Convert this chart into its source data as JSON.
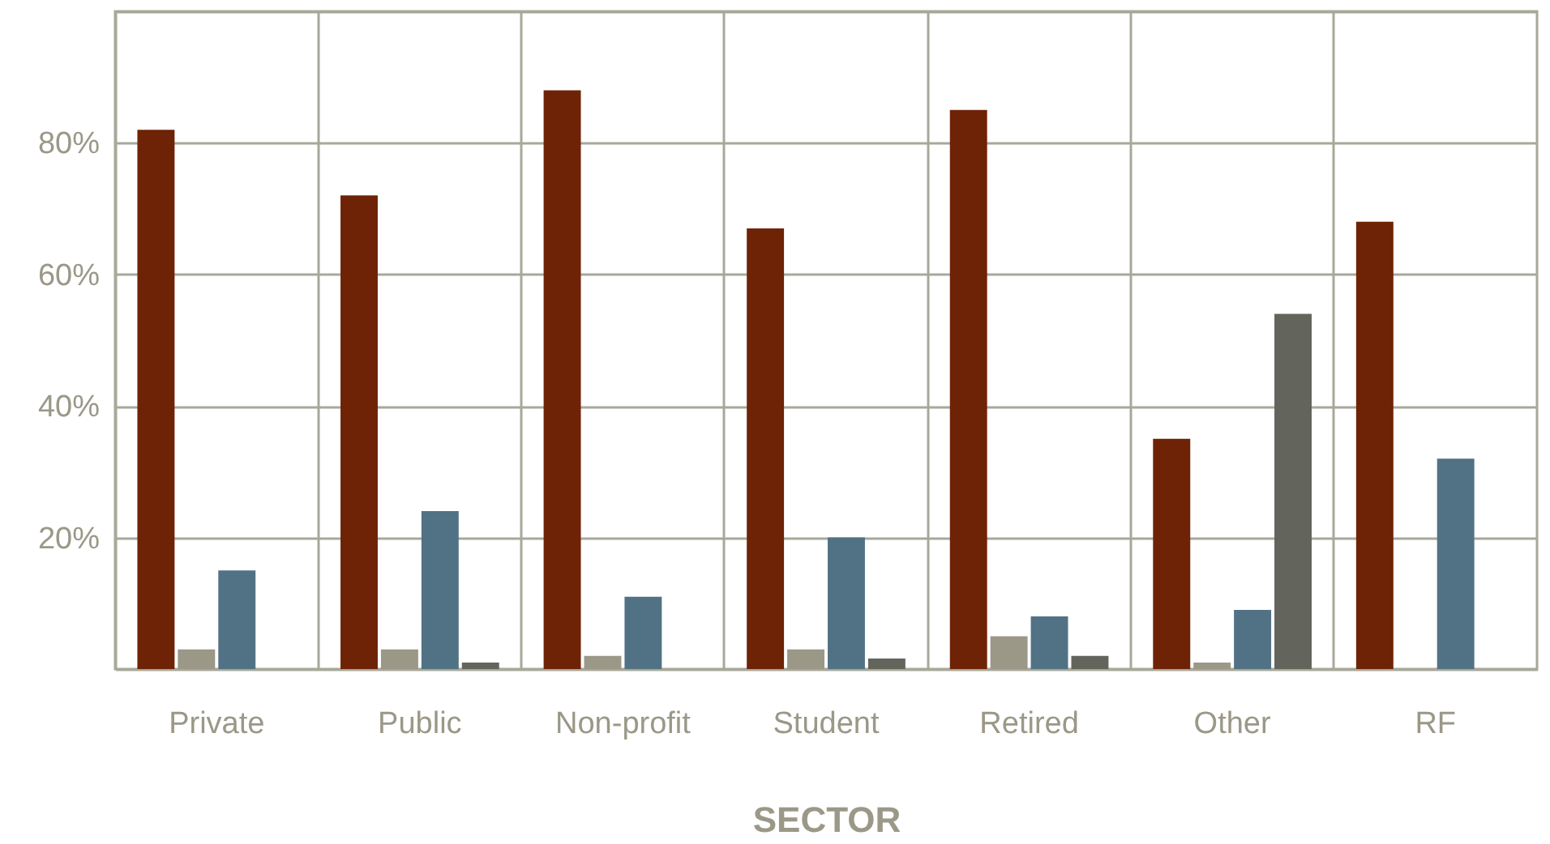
{
  "chart_data": {
    "type": "bar",
    "xlabel": "SECTOR",
    "categories": [
      "Private",
      "Public",
      "Non-profit",
      "Student",
      "Retired",
      "Other",
      "RF"
    ],
    "series": [
      {
        "color": "#6e2306",
        "values": [
          82,
          72,
          88,
          67,
          85,
          35,
          68
        ]
      },
      {
        "color": "#9b9888",
        "values": [
          3,
          3,
          2,
          3,
          5,
          1,
          0
        ]
      },
      {
        "color": "#517284",
        "values": [
          15,
          24,
          11,
          20,
          8,
          9,
          32
        ]
      },
      {
        "color": "#63645b",
        "values": [
          0,
          1,
          0,
          1.6,
          2,
          54,
          0
        ]
      }
    ],
    "ylim": [
      0,
      100
    ],
    "yticks": [
      {
        "value": 0,
        "label": null
      },
      {
        "value": 20,
        "label": "20%"
      },
      {
        "value": 40,
        "label": "40%"
      },
      {
        "value": 60,
        "label": "60%"
      },
      {
        "value": 80,
        "label": "80%"
      },
      {
        "value": 100,
        "label": null
      }
    ],
    "grid": true
  }
}
